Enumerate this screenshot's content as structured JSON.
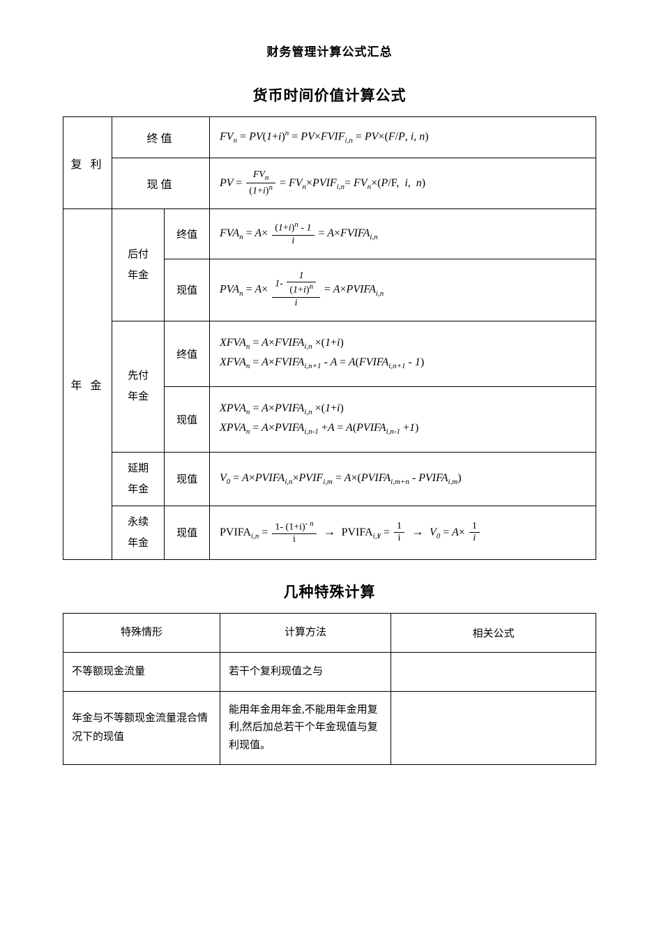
{
  "colors": {
    "text": "#000000",
    "border": "#000000",
    "background": "#ffffff"
  },
  "typography": {
    "body_font": "SimSun",
    "math_font": "Times New Roman",
    "doc_title_size": 17,
    "section_title_size": 21,
    "cell_text_size": 15,
    "formula_size": 16
  },
  "doc_title": "财务管理计算公式汇总",
  "section1": {
    "title": "货币时间价值计算公式",
    "compound_label": "复 利",
    "annuity_label": "年 金",
    "fv_label": "终值",
    "pv_label": "现值",
    "annuity_types": {
      "ordinary": "后付\n年金",
      "due": "先付\n年金",
      "deferred": "延期\n年金",
      "perpetuity": "永续\n年金"
    },
    "formulas": {
      "compound_fv": "FV_n = PV(1+i)^n = PV×FVIF_{i,n} = PV×(F/P, i, n)",
      "compound_pv": "PV = FV_n / (1+i)^n = FV_n×PVIF_{i,n} = FV_n×(P/F, i, n)",
      "ordinary_fv": "FVA_n = A × [(1+i)^n − 1]/i = A×FVIFA_{i,n}",
      "ordinary_pv": "PVA_n = A × [1 − 1/(1+i)^n]/i = A×PVIFA_{i,n}",
      "due_fv_1": "XFVA_n = A×FVIFA_{i,n} ×(1+i)",
      "due_fv_2": "XFVA_n = A×FVIFA_{i,n+1} − A = A(FVIFA_{i,n+1} − 1)",
      "due_pv_1": "XPVA_n = A×PVIFA_{i,n} ×(1+i)",
      "due_pv_2": "XPVA_n = A×PVIFA_{i,n−1} + A = A(PVIFA_{i,n−1} +1)",
      "deferred_pv": "V_0 = A×PVIFA_{i,n}×PVIF_{i,m} = A×(PVIFA_{i,m+n} − PVIFA_{i,m})",
      "perpetuity_pv": "PVIFA_{i,n} = [1−(1+i)^{−n}]/i → PVIFA_{i,∞} = 1/i → V_0 = A×1/i"
    }
  },
  "section2": {
    "title": "几种特殊计算",
    "headers": {
      "col1": "特殊情形",
      "col2": "计算方法",
      "col3": "相关公式"
    },
    "rows": [
      {
        "case": "不等额现金流量",
        "method": "若干个复利现值之与",
        "formula": ""
      },
      {
        "case": "年金与不等额现金流量混合情况下的现值",
        "method": "能用年金用年金,不能用年金用复利,然后加总若干个年金现值与复利现值。",
        "formula": ""
      }
    ]
  }
}
